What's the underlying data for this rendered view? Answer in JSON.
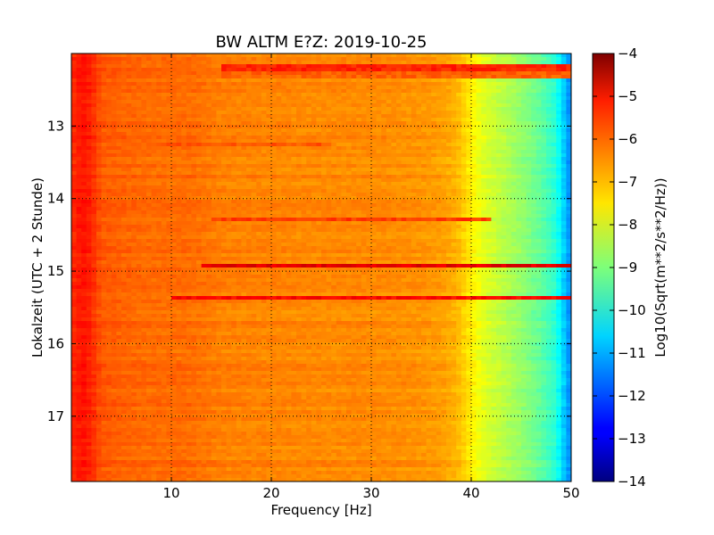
{
  "chart_data": {
    "type": "heatmap",
    "title": "BW ALTM E?Z: 2019-10-25",
    "xlabel": "Frequency [Hz]",
    "ylabel": "Lokalzeit (UTC + 2 Stunde)",
    "xlim": [
      0,
      50
    ],
    "ylim": [
      17.9,
      12.0
    ],
    "y_inverted": true,
    "x_ticks": [
      10,
      20,
      30,
      40,
      50
    ],
    "y_ticks": [
      13,
      14,
      15,
      16,
      17
    ],
    "grid": true,
    "grid_style": "dotted",
    "colormap": "jet",
    "colorbar": {
      "label": "Log10(Sqrt(m**2/s**2/Hz))",
      "range": [
        -14,
        -4
      ],
      "ticks": [
        -4,
        -5,
        -6,
        -7,
        -8,
        -9,
        -10,
        -11,
        -12,
        -13,
        -14
      ]
    },
    "baseline_profile": {
      "frequency_hz": [
        0,
        1,
        2,
        3,
        5,
        8,
        10,
        12,
        15,
        20,
        25,
        30,
        35,
        37,
        38.5,
        40,
        41,
        43,
        45,
        47,
        48.5,
        49.3,
        50
      ],
      "value": [
        -5.7,
        -5.4,
        -5.6,
        -6.1,
        -6.2,
        -6.3,
        -6.3,
        -6.3,
        -6.5,
        -6.55,
        -6.6,
        -6.6,
        -6.7,
        -6.8,
        -7.0,
        -7.6,
        -8.0,
        -8.4,
        -8.8,
        -9.3,
        -9.9,
        -10.8,
        -11.5
      ]
    },
    "highlighted_bands": [
      {
        "time": 12.2,
        "value": -5.6,
        "from_hz": 15,
        "to_hz": 50
      },
      {
        "time": 12.3,
        "value": -6.2,
        "from_hz": 15,
        "to_hz": 50
      },
      {
        "time": 13.25,
        "value": -6.1,
        "from_hz": 6,
        "to_hz": 26
      },
      {
        "time": 14.28,
        "value": -5.8,
        "from_hz": 14,
        "to_hz": 42
      },
      {
        "time": 14.93,
        "value": -5.0,
        "from_hz": 13,
        "to_hz": 50
      },
      {
        "time": 15.38,
        "value": -5.3,
        "from_hz": 10,
        "to_hz": 50
      }
    ]
  }
}
